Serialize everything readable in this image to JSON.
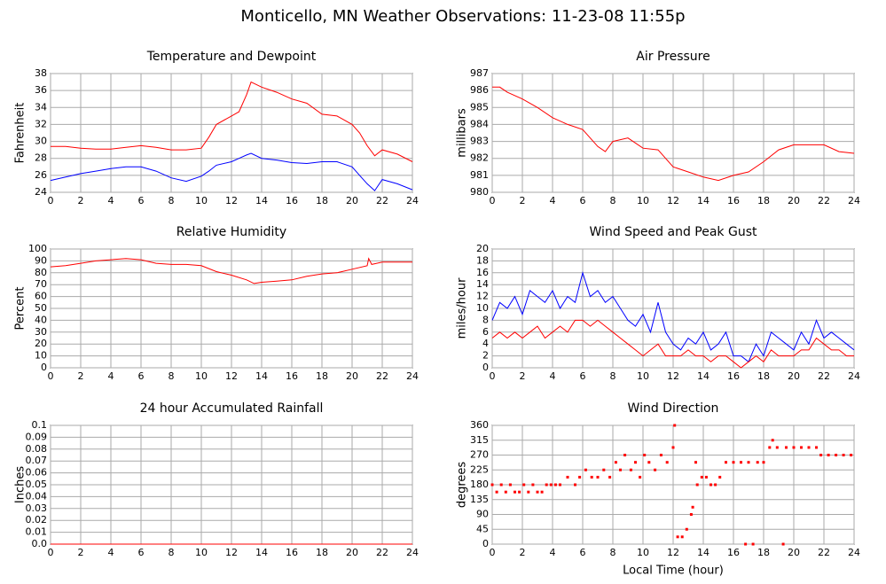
{
  "title": "Monticello, MN Weather Observations: 11-23-08 11:55p",
  "chart_data": [
    {
      "type": "line",
      "title": "Temperature and Dewpoint",
      "y_label": "Fahrenheit",
      "grid": true,
      "xlim": [
        0,
        24
      ],
      "xticks": [
        0,
        2,
        4,
        6,
        8,
        10,
        12,
        14,
        16,
        18,
        20,
        22,
        24
      ],
      "ylim": [
        24,
        38
      ],
      "yticks": [
        24,
        26,
        28,
        30,
        32,
        34,
        36,
        38
      ],
      "x": [
        0,
        1,
        2,
        3,
        4,
        5,
        6,
        7,
        8,
        9,
        10,
        10.5,
        11,
        12,
        12.5,
        13,
        13.3,
        14,
        15,
        16,
        17,
        18,
        19,
        20,
        20.5,
        21,
        21.5,
        22,
        23,
        24
      ],
      "series": [
        {
          "color": "#ff0000",
          "values": [
            29.4,
            29.4,
            29.2,
            29.1,
            29.1,
            29.3,
            29.5,
            29.3,
            29.0,
            29.0,
            29.2,
            30.5,
            32.0,
            33.0,
            33.5,
            35.5,
            37.0,
            36.4,
            35.8,
            35.0,
            34.5,
            33.2,
            33.0,
            32.0,
            31.0,
            29.5,
            28.3,
            29.0,
            28.5,
            27.6
          ]
        },
        {
          "color": "#0000ff",
          "values": [
            25.4,
            25.8,
            26.2,
            26.5,
            26.8,
            27.0,
            27.0,
            26.5,
            25.7,
            25.3,
            25.9,
            26.5,
            27.2,
            27.6,
            28.0,
            28.4,
            28.6,
            28.0,
            27.8,
            27.5,
            27.4,
            27.6,
            27.6,
            27.0,
            26.0,
            25.0,
            24.2,
            25.5,
            25.0,
            24.3
          ]
        }
      ]
    },
    {
      "type": "line",
      "title": "Air Pressure",
      "y_label": "millibars",
      "grid": true,
      "xlim": [
        0,
        24
      ],
      "xticks": [
        0,
        2,
        4,
        6,
        8,
        10,
        12,
        14,
        16,
        18,
        20,
        22,
        24
      ],
      "ylim": [
        980,
        987
      ],
      "yticks": [
        980,
        981,
        982,
        983,
        984,
        985,
        986,
        987
      ],
      "x": [
        0,
        0.5,
        1,
        2,
        3,
        4,
        5,
        6,
        7,
        7.5,
        8,
        9,
        10,
        11,
        12,
        13,
        14,
        15,
        16,
        17,
        18,
        19,
        20,
        21,
        22,
        23,
        24
      ],
      "series": [
        {
          "color": "#ff0000",
          "values": [
            986.2,
            986.2,
            985.9,
            985.5,
            985.0,
            984.4,
            984.0,
            983.7,
            982.7,
            982.4,
            983.0,
            983.2,
            982.6,
            982.5,
            981.5,
            981.2,
            980.9,
            980.7,
            981.0,
            981.2,
            981.8,
            982.5,
            982.8,
            982.8,
            982.8,
            982.4,
            982.3
          ]
        }
      ]
    },
    {
      "type": "line",
      "title": "Relative Humidity",
      "y_label": "Percent",
      "grid": true,
      "xlim": [
        0,
        24
      ],
      "xticks": [
        0,
        2,
        4,
        6,
        8,
        10,
        12,
        14,
        16,
        18,
        20,
        22,
        24
      ],
      "ylim": [
        0,
        100
      ],
      "yticks": [
        0,
        10,
        20,
        30,
        40,
        50,
        60,
        70,
        80,
        90,
        100
      ],
      "x": [
        0,
        1,
        2,
        3,
        4,
        5,
        6,
        7,
        8,
        9,
        10,
        11,
        12,
        13,
        13.5,
        14,
        15,
        16,
        17,
        18,
        19,
        20,
        21,
        21.1,
        21.3,
        22,
        23,
        24
      ],
      "series": [
        {
          "color": "#ff0000",
          "values": [
            85,
            86,
            88,
            90,
            91,
            92,
            91,
            88,
            87,
            87,
            86,
            81,
            78,
            74,
            71,
            72,
            73,
            74,
            77,
            79,
            80,
            83,
            86,
            92,
            87,
            89,
            89,
            89
          ]
        }
      ]
    },
    {
      "type": "line",
      "title": "Wind Speed and Peak Gust",
      "y_label": "miles/hour",
      "grid": true,
      "xlim": [
        0,
        24
      ],
      "xticks": [
        0,
        2,
        4,
        6,
        8,
        10,
        12,
        14,
        16,
        18,
        20,
        22,
        24
      ],
      "ylim": [
        0,
        20
      ],
      "yticks": [
        0,
        2,
        4,
        6,
        8,
        10,
        12,
        14,
        16,
        18,
        20
      ],
      "x": [
        0,
        0.5,
        1,
        1.5,
        2,
        2.5,
        3,
        3.5,
        4,
        4.5,
        5,
        5.5,
        6,
        6.5,
        7,
        7.5,
        8,
        8.5,
        9,
        9.5,
        10,
        10.5,
        11,
        11.5,
        12,
        12.5,
        13,
        13.5,
        14,
        14.5,
        15,
        15.5,
        16,
        16.5,
        17,
        17.5,
        18,
        18.5,
        19,
        19.5,
        20,
        20.5,
        21,
        21.5,
        22,
        22.5,
        23,
        23.5,
        24
      ],
      "series": [
        {
          "color": "#0000ff",
          "values": [
            8,
            11,
            10,
            12,
            9,
            13,
            12,
            11,
            13,
            10,
            12,
            11,
            16,
            12,
            13,
            11,
            12,
            10,
            8,
            7,
            9,
            6,
            11,
            6,
            4,
            3,
            5,
            4,
            6,
            3,
            4,
            6,
            2,
            2,
            1,
            4,
            2,
            6,
            5,
            4,
            3,
            6,
            4,
            8,
            5,
            6,
            5,
            4,
            3
          ]
        },
        {
          "color": "#ff0000",
          "values": [
            5,
            6,
            5,
            6,
            5,
            6,
            7,
            5,
            6,
            7,
            6,
            8,
            8,
            7,
            8,
            7,
            6,
            5,
            4,
            3,
            2,
            3,
            4,
            2,
            2,
            2,
            3,
            2,
            2,
            1,
            2,
            2,
            1,
            0,
            1,
            2,
            1,
            3,
            2,
            2,
            2,
            3,
            3,
            5,
            4,
            3,
            3,
            2,
            2
          ]
        }
      ]
    },
    {
      "type": "line",
      "title": "24 hour Accumulated Rainfall",
      "y_label": "Inches",
      "grid": true,
      "xlim": [
        0,
        24
      ],
      "xticks": [
        0,
        2,
        4,
        6,
        8,
        10,
        12,
        14,
        16,
        18,
        20,
        22,
        24
      ],
      "ylim": [
        0,
        0.1
      ],
      "yticks": [
        {
          "value": 0,
          "label": "0.0"
        },
        0.01,
        0.02,
        0.03,
        0.04,
        0.05,
        0.06,
        0.07,
        0.08,
        0.09,
        0.1
      ],
      "x": [
        0,
        24
      ],
      "series": [
        {
          "color": "#ff0000",
          "values": [
            0,
            0
          ]
        }
      ]
    },
    {
      "type": "scatter",
      "title": "Wind Direction",
      "y_label": "degrees",
      "x_label": "Local Time (hour)",
      "grid": true,
      "xlim": [
        0,
        24
      ],
      "xticks": [
        0,
        2,
        4,
        6,
        8,
        10,
        12,
        14,
        16,
        18,
        20,
        22,
        24
      ],
      "ylim": [
        0,
        360
      ],
      "yticks": [
        0,
        45,
        90,
        135,
        180,
        225,
        270,
        315,
        360
      ],
      "color": "#ff0000",
      "x": [
        0,
        0.3,
        0.6,
        0.9,
        1.2,
        1.5,
        1.8,
        2.1,
        2.4,
        2.7,
        3.0,
        3.3,
        3.6,
        3.9,
        4.2,
        4.5,
        5.0,
        5.5,
        5.8,
        6.2,
        6.6,
        7.0,
        7.4,
        7.8,
        8.2,
        8.5,
        8.8,
        9.2,
        9.5,
        9.8,
        10.1,
        10.4,
        10.8,
        11.2,
        11.6,
        12.0,
        12.1,
        12.3,
        12.6,
        12.9,
        13.2,
        13.3,
        13.5,
        13.6,
        13.9,
        14.2,
        14.5,
        14.8,
        15.1,
        15.5,
        16.0,
        16.5,
        16.8,
        17.0,
        17.3,
        17.6,
        18.0,
        18.4,
        18.6,
        18.9,
        19.3,
        19.5,
        20.0,
        20.5,
        21.0,
        21.5,
        21.8,
        22.3,
        22.8,
        23.3,
        23.8
      ],
      "values": [
        180,
        158,
        180,
        158,
        180,
        158,
        158,
        180,
        158,
        180,
        158,
        158,
        180,
        180,
        180,
        180,
        203,
        180,
        203,
        225,
        203,
        203,
        225,
        203,
        248,
        225,
        270,
        225,
        248,
        203,
        270,
        248,
        225,
        270,
        248,
        293,
        360,
        22,
        22,
        45,
        90,
        112,
        248,
        180,
        203,
        203,
        180,
        180,
        203,
        248,
        248,
        248,
        0,
        248,
        0,
        248,
        248,
        293,
        315,
        293,
        0,
        293,
        293,
        293,
        293,
        293,
        270,
        270,
        270,
        270,
        270
      ]
    }
  ]
}
